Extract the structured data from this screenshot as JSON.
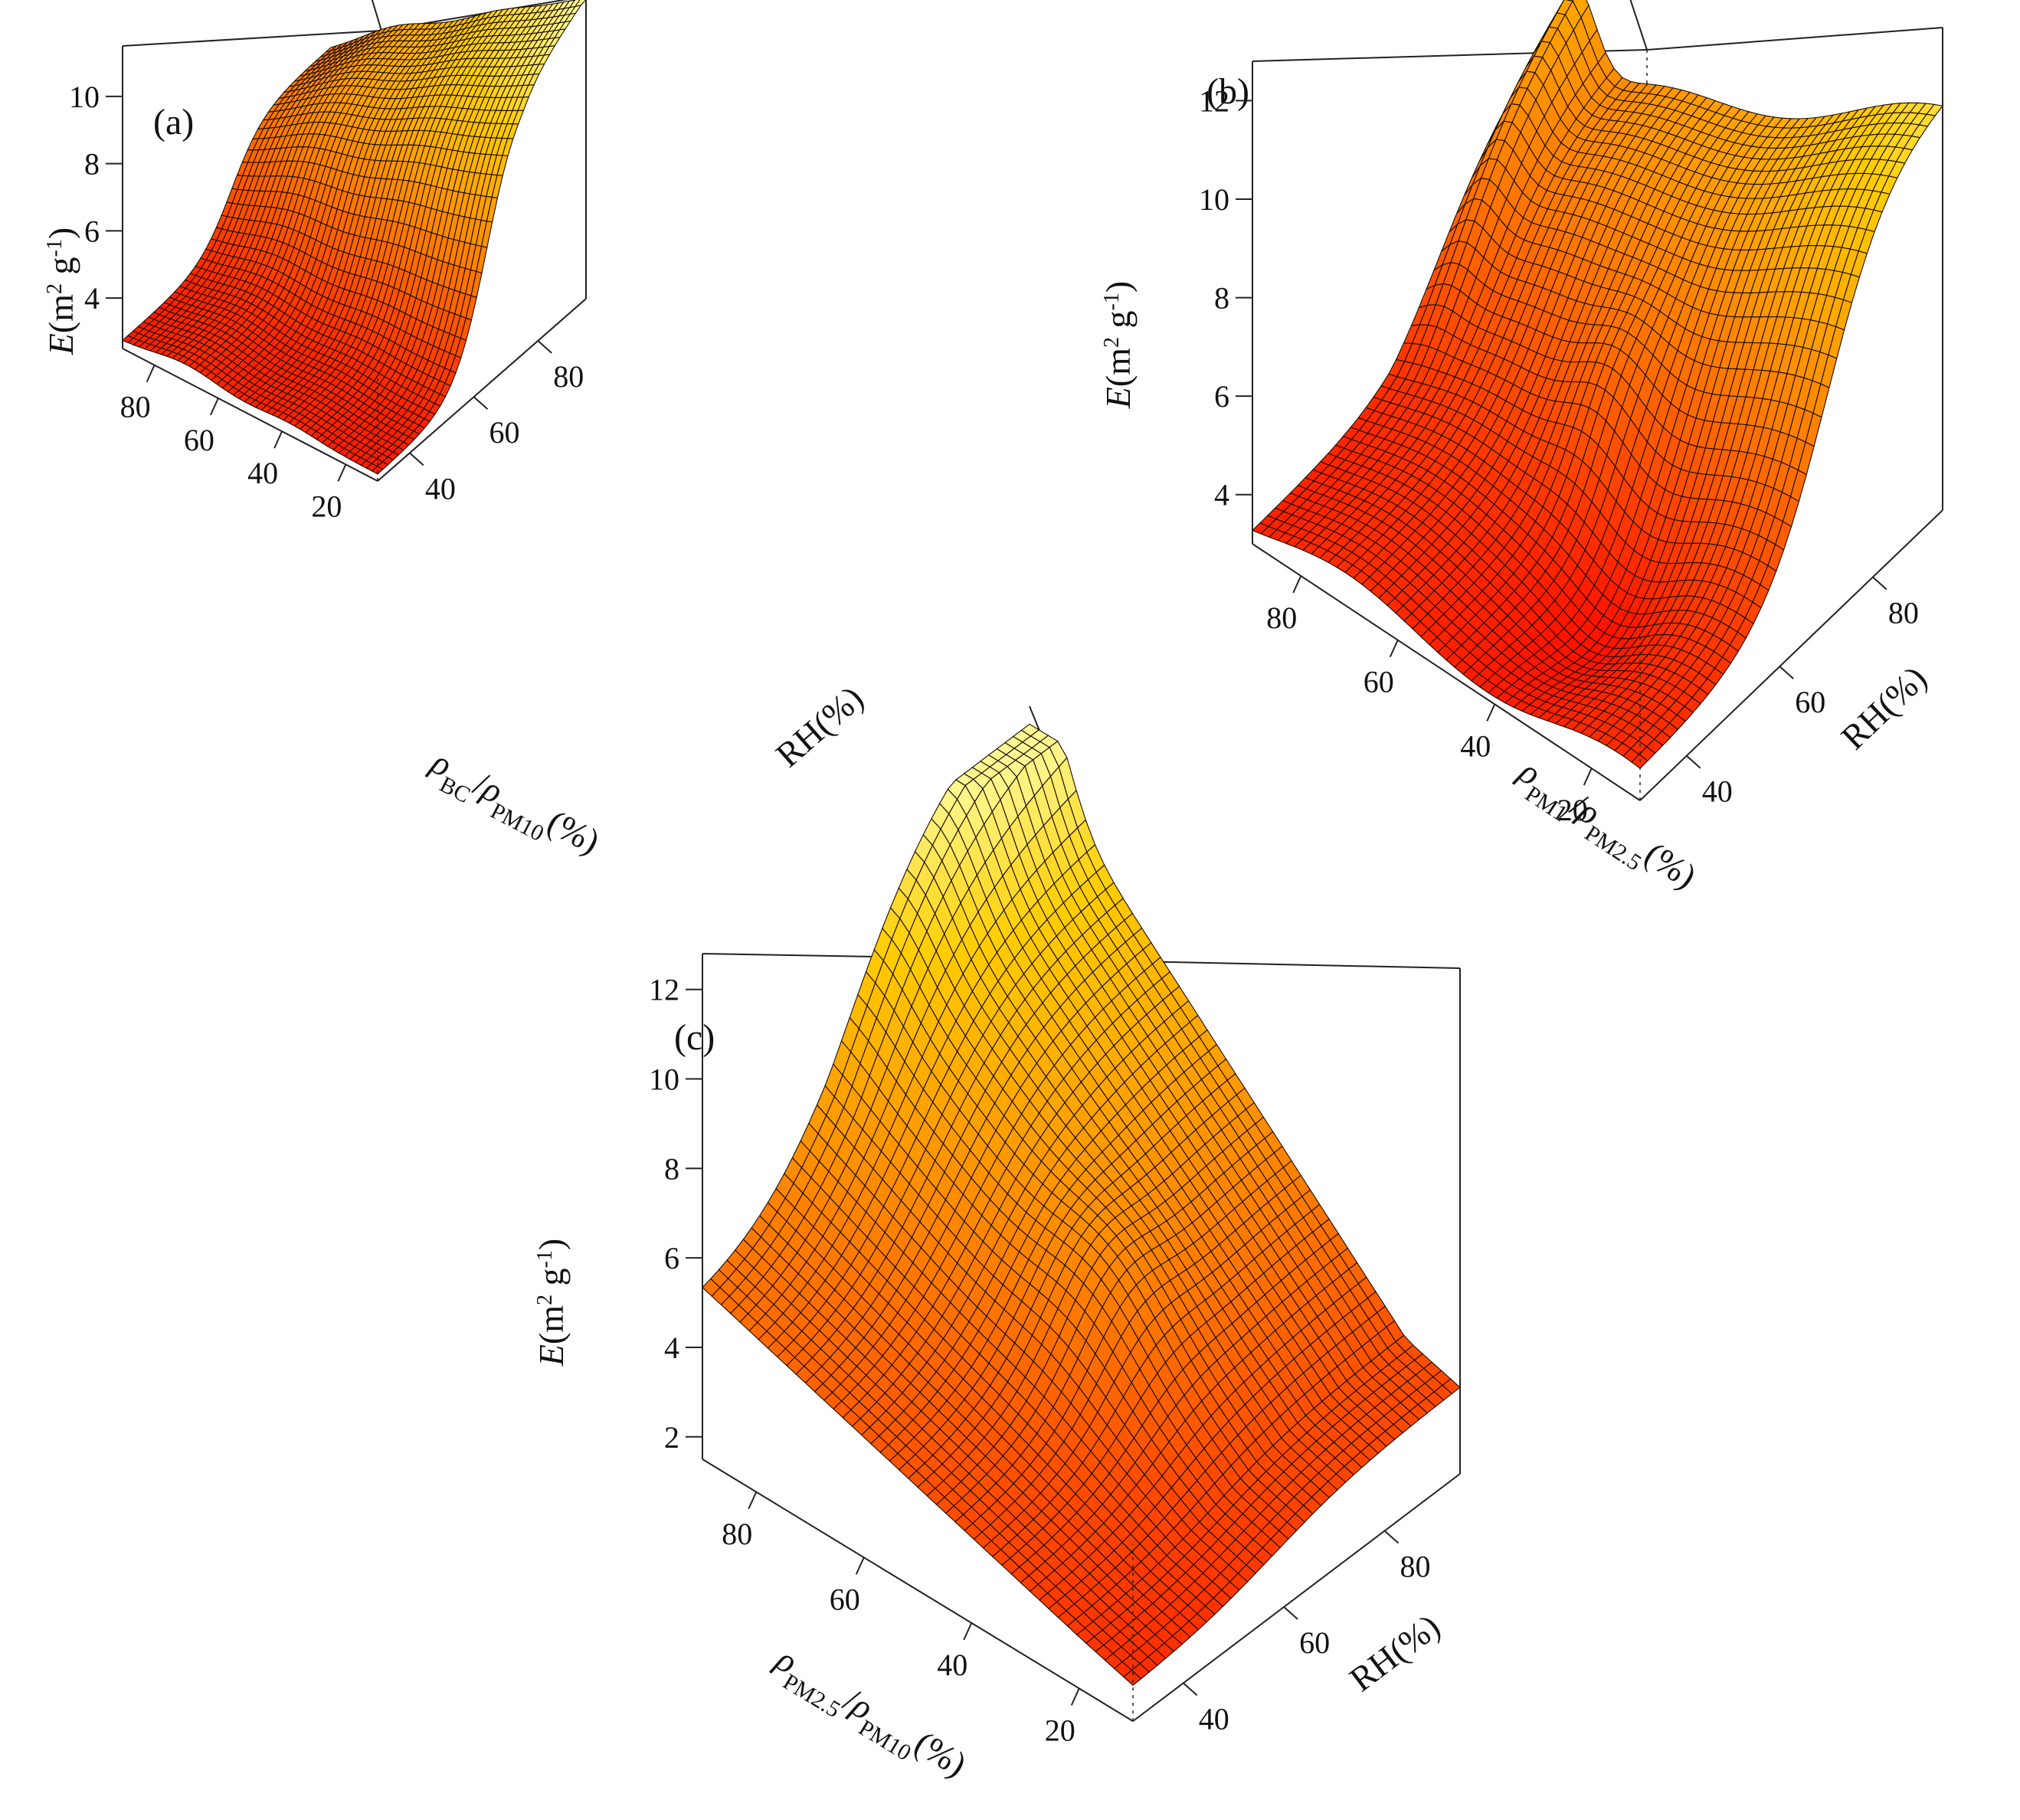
{
  "chart_data": [
    {
      "panel": "(a)",
      "type": "surface3d",
      "z_label": {
        "italic": "E",
        "rest": "(m",
        "sup1": "2",
        "mid": " g",
        "sup2": "-1",
        "close": ")"
      },
      "x_label": {
        "rho1": "ρ",
        "sub1": "BC",
        "slash": "/",
        "rho2": "ρ",
        "sub2": "PM10",
        "unit": "(%)"
      },
      "y_label": "RH(%)",
      "z_ticks": [
        "4",
        "6",
        "8",
        "10"
      ],
      "x_ticks": [
        "80",
        "60",
        "40",
        "20"
      ],
      "y_ticks": [
        "40",
        "60",
        "80"
      ],
      "x_range": [
        10,
        90
      ],
      "y_range": [
        30,
        95
      ],
      "z_range": [
        2.5,
        11.5
      ]
    },
    {
      "panel": "(b)",
      "type": "surface3d",
      "z_label": {
        "italic": "E",
        "rest": "(m",
        "sup1": "2",
        "mid": " g",
        "sup2": "-1",
        "close": ")"
      },
      "x_label": {
        "rho1": "ρ",
        "sub1": "PM1",
        "slash": "/",
        "rho2": "ρ",
        "sub2": "PM2.5",
        "unit": "(%)"
      },
      "y_label": "RH(%)",
      "z_ticks": [
        "4",
        "6",
        "8",
        "10",
        "12"
      ],
      "x_ticks": [
        "80",
        "60",
        "40",
        "20"
      ],
      "y_ticks": [
        "40",
        "60",
        "80"
      ],
      "x_range": [
        10,
        90
      ],
      "y_range": [
        30,
        95
      ],
      "z_range": [
        3,
        12.8
      ]
    },
    {
      "panel": "(c)",
      "type": "surface3d",
      "z_label": {
        "italic": "E",
        "rest": "(m",
        "sup1": "2",
        "mid": " g",
        "sup2": "-1",
        "close": ")"
      },
      "x_label": {
        "rho1": "ρ",
        "sub1": "PM2.5",
        "slash": "/",
        "rho2": "ρ",
        "sub2": "PM10",
        "unit": "(%)"
      },
      "y_label": "RH(%)",
      "z_ticks": [
        "2",
        "4",
        "6",
        "8",
        "10",
        "12"
      ],
      "x_ticks": [
        "80",
        "60",
        "40",
        "20"
      ],
      "y_ticks": [
        "40",
        "60",
        "80"
      ],
      "x_range": [
        10,
        90
      ],
      "y_range": [
        30,
        95
      ],
      "z_range": [
        1.5,
        12.8
      ]
    }
  ]
}
